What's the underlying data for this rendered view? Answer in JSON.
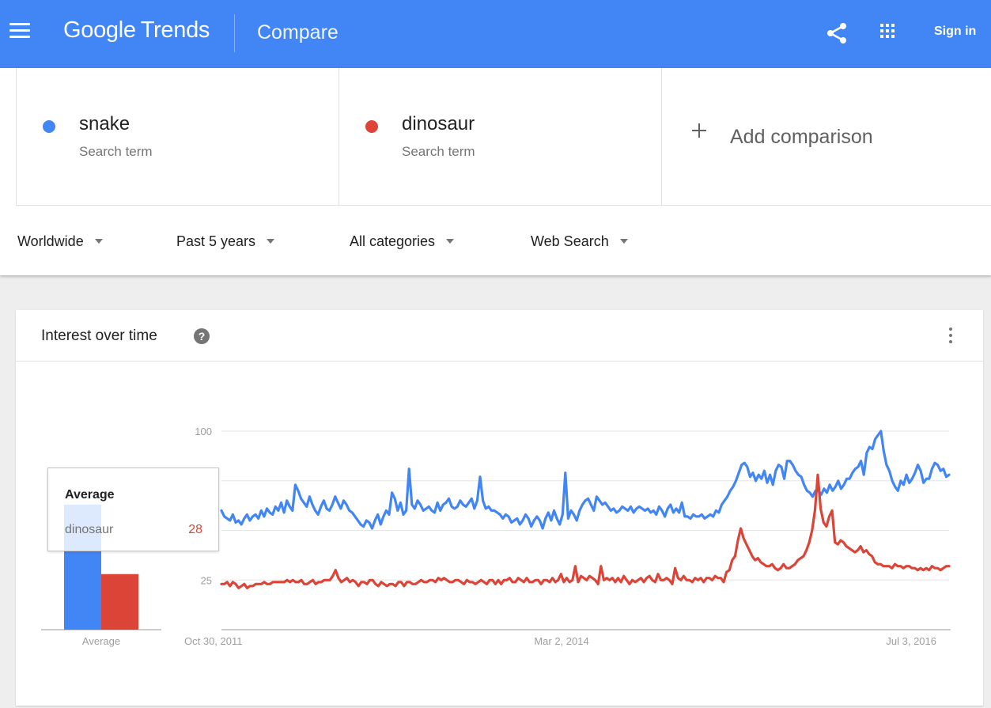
{
  "appbar": {
    "logo_google": "Google",
    "logo_trends": "Trends",
    "page_title": "Compare",
    "sign_in": "Sign in"
  },
  "terms": [
    {
      "name": "snake",
      "sub": "Search term",
      "color": "#4285f4"
    },
    {
      "name": "dinosaur",
      "sub": "Search term",
      "color": "#db4437"
    }
  ],
  "add_comparison": "Add comparison",
  "filters": [
    {
      "label": "Worldwide"
    },
    {
      "label": "Past 5 years"
    },
    {
      "label": "All categories"
    },
    {
      "label": "Web Search"
    }
  ],
  "card": {
    "title": "Interest over time"
  },
  "tooltip": {
    "title": "Average",
    "term": "dinosaur",
    "value": "28"
  },
  "colors": {
    "brand": "#4285f4",
    "snake": "#4285f4",
    "dinosaur": "#db4437"
  },
  "chart_data": [
    {
      "type": "bar",
      "categories": [
        "Average"
      ],
      "series": [
        {
          "name": "snake",
          "values": [
            63
          ]
        },
        {
          "name": "dinosaur",
          "values": [
            28
          ]
        }
      ],
      "xlabel": "Average",
      "ylim": [
        0,
        100
      ]
    },
    {
      "type": "line",
      "x_tick_labels": [
        "Oct 30, 2011",
        "Mar 2, 2014",
        "Jul 3, 2016"
      ],
      "y_tick_labels": [
        "100",
        "25"
      ],
      "ylim": [
        0,
        100
      ],
      "grid": true,
      "series": [
        {
          "name": "snake",
          "values": [
            60,
            57,
            56,
            55,
            58,
            54,
            55,
            53,
            56,
            58,
            55,
            57,
            58,
            56,
            60,
            57,
            61,
            59,
            58,
            62,
            60,
            64,
            59,
            65,
            62,
            60,
            73,
            70,
            66,
            64,
            62,
            67,
            63,
            60,
            58,
            62,
            65,
            61,
            60,
            63,
            67,
            64,
            61,
            65,
            63,
            60,
            59,
            57,
            55,
            53,
            52,
            55,
            54,
            51,
            55,
            58,
            53,
            57,
            60,
            58,
            69,
            66,
            60,
            64,
            58,
            60,
            81,
            63,
            61,
            65,
            63,
            60,
            61,
            62,
            60,
            59,
            64,
            60,
            63,
            64,
            66,
            62,
            61,
            62,
            65,
            63,
            62,
            64,
            66,
            61,
            65,
            77,
            65,
            61,
            62,
            60,
            60,
            59,
            58,
            56,
            58,
            57,
            54,
            55,
            56,
            53,
            55,
            58,
            56,
            52,
            55,
            57,
            55,
            51,
            56,
            59,
            55,
            60,
            56,
            53,
            58,
            79,
            56,
            60,
            58,
            55,
            60,
            63,
            65,
            66,
            63,
            60,
            67,
            65,
            63,
            64,
            62,
            60,
            61,
            59,
            60,
            62,
            61,
            60,
            62,
            59,
            61,
            62,
            61,
            60,
            61,
            59,
            60,
            58,
            62,
            60,
            57,
            61,
            63,
            59,
            61,
            59,
            64,
            57,
            57,
            56,
            58,
            57,
            57,
            58,
            56,
            57,
            58,
            57,
            60,
            59,
            63,
            65,
            67,
            70,
            72,
            75,
            79,
            83,
            84,
            82,
            77,
            79,
            75,
            78,
            76,
            80,
            74,
            78,
            73,
            80,
            83,
            82,
            76,
            85,
            85,
            83,
            80,
            78,
            77,
            73,
            70,
            69,
            67,
            70,
            70,
            68,
            71,
            69,
            73,
            70,
            72,
            75,
            71,
            73,
            76,
            76,
            79,
            81,
            82,
            85,
            78,
            89,
            92,
            91,
            96,
            98,
            100,
            90,
            83,
            80,
            75,
            72,
            70,
            75,
            73,
            78,
            74,
            76,
            79,
            83,
            80,
            74,
            76,
            76,
            81,
            84,
            83,
            80,
            81,
            77,
            78
          ]
        },
        {
          "name": "dinosaur",
          "values": [
            23,
            23,
            24,
            22,
            24,
            23,
            21,
            22,
            23,
            21,
            22,
            22,
            23,
            23,
            23,
            24,
            23,
            23,
            24,
            24,
            24,
            24,
            24,
            25,
            24,
            25,
            24,
            24,
            25,
            23,
            23,
            24,
            25,
            23,
            24,
            24,
            25,
            25,
            25,
            27,
            30,
            26,
            24,
            25,
            26,
            24,
            25,
            24,
            22,
            24,
            24,
            23,
            25,
            25,
            23,
            22,
            24,
            23,
            22,
            23,
            23,
            22,
            24,
            24,
            22,
            24,
            24,
            23,
            23,
            24,
            25,
            24,
            24,
            25,
            25,
            24,
            26,
            25,
            26,
            25,
            24,
            24,
            25,
            25,
            24,
            23,
            25,
            24,
            24,
            23,
            24,
            25,
            24,
            23,
            25,
            25,
            23,
            25,
            23,
            25,
            25,
            26,
            24,
            24,
            26,
            25,
            24,
            26,
            24,
            24,
            25,
            25,
            23,
            25,
            25,
            24,
            26,
            24,
            25,
            28,
            24,
            26,
            24,
            25,
            32,
            24,
            27,
            26,
            25,
            27,
            26,
            25,
            23,
            32,
            25,
            26,
            25,
            26,
            24,
            26,
            24,
            27,
            25,
            23,
            25,
            24,
            25,
            26,
            24,
            26,
            27,
            25,
            24,
            28,
            25,
            25,
            26,
            25,
            23,
            31,
            26,
            25,
            27,
            25,
            25,
            24,
            26,
            25,
            26,
            24,
            26,
            26,
            25,
            27,
            26,
            26,
            24,
            29,
            30,
            35,
            37,
            45,
            51,
            46,
            43,
            40,
            37,
            35,
            36,
            34,
            33,
            32,
            32,
            33,
            31,
            30,
            31,
            33,
            31,
            31,
            32,
            33,
            35,
            36,
            37,
            40,
            44,
            50,
            60,
            78,
            61,
            54,
            52,
            57,
            60,
            44,
            43,
            45,
            44,
            42,
            41,
            40,
            39,
            40,
            42,
            39,
            40,
            38,
            37,
            34,
            33,
            33,
            32,
            32,
            32,
            31,
            33,
            32,
            32,
            31,
            32,
            32,
            31,
            31,
            30,
            31,
            30,
            31,
            30,
            32,
            31,
            31,
            30,
            31,
            32,
            32
          ]
        }
      ]
    }
  ]
}
